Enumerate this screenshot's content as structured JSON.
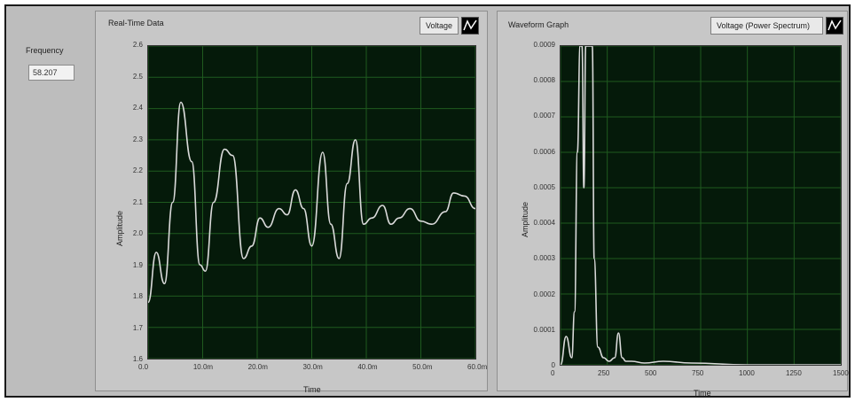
{
  "frequency": {
    "label": "Frequency",
    "value": "58.207"
  },
  "left_chart": {
    "title": "Real-Time Data",
    "legend_label": "Voltage",
    "y_axis_label": "Amplitude",
    "x_axis_label": "Time",
    "y_ticks": [
      "2.6",
      "2.5",
      "2.4",
      "2.3",
      "2.2",
      "2.1",
      "2.0",
      "1.9",
      "1.8",
      "1.7",
      "1.6"
    ],
    "x_ticks": [
      "0.0",
      "10.0m",
      "20.0m",
      "30.0m",
      "40.0m",
      "50.0m",
      "60.0m"
    ]
  },
  "right_chart": {
    "title": "Waveform Graph",
    "legend_label": "Voltage (Power Spectrum)",
    "y_axis_label": "Amplitude",
    "x_axis_label": "Time",
    "y_ticks": [
      "0.0009",
      "0.0008",
      "0.0007",
      "0.0006",
      "0.0005",
      "0.0004",
      "0.0003",
      "0.0002",
      "0.0001",
      "0"
    ],
    "x_ticks": [
      "0",
      "250",
      "500",
      "750",
      "1000",
      "1250",
      "1500"
    ]
  },
  "colors": {
    "plot_bg": "#051a0a",
    "grid": "#1f5a1f",
    "trace": "#d9d9d9"
  },
  "chart_data": [
    {
      "type": "line",
      "title": "",
      "xlabel": "Time",
      "ylabel": "Amplitude",
      "xlim": [
        0,
        0.06
      ],
      "ylim": [
        1.6,
        2.6
      ],
      "grid": true,
      "series": [
        {
          "name": "Voltage",
          "x": [
            0,
            0.0015,
            0.003,
            0.0045,
            0.006,
            0.008,
            0.0095,
            0.0105,
            0.012,
            0.014,
            0.0155,
            0.0175,
            0.019,
            0.0205,
            0.022,
            0.024,
            0.0255,
            0.027,
            0.0285,
            0.03,
            0.032,
            0.0335,
            0.035,
            0.0365,
            0.038,
            0.0395,
            0.041,
            0.043,
            0.0445,
            0.046,
            0.048,
            0.05,
            0.052,
            0.0545,
            0.056,
            0.058,
            0.06
          ],
          "y": [
            1.78,
            1.94,
            1.84,
            2.1,
            2.42,
            2.23,
            1.9,
            1.88,
            2.1,
            2.27,
            2.25,
            1.92,
            1.96,
            2.05,
            2.02,
            2.08,
            2.06,
            2.14,
            2.08,
            1.96,
            2.26,
            2.03,
            1.92,
            2.16,
            2.3,
            2.03,
            2.05,
            2.09,
            2.03,
            2.05,
            2.08,
            2.04,
            2.03,
            2.07,
            2.13,
            2.12,
            2.08
          ]
        }
      ]
    },
    {
      "type": "line",
      "title": "",
      "xlabel": "Time",
      "ylabel": "Amplitude",
      "xlim": [
        0,
        1500
      ],
      "ylim": [
        0,
        0.0009
      ],
      "grid": true,
      "series": [
        {
          "name": "Voltage (Power Spectrum)",
          "x": [
            0,
            30,
            60,
            75,
            90,
            105,
            115,
            125,
            135,
            150,
            160,
            170,
            180,
            200,
            230,
            260,
            290,
            310,
            330,
            350,
            380,
            450,
            550,
            700,
            1000,
            1500
          ],
          "y": [
            0.0,
            8e-05,
            2e-05,
            0.00015,
            0.0006,
            0.0009,
            0.0009,
            0.0005,
            0.0009,
            0.0009,
            0.0009,
            0.0009,
            0.0003,
            5e-05,
            2e-05,
            1e-05,
            2e-05,
            9e-05,
            2e-05,
            1e-05,
            1e-05,
            5e-06,
            1e-05,
            5e-06,
            0.0,
            0.0
          ]
        }
      ]
    }
  ]
}
